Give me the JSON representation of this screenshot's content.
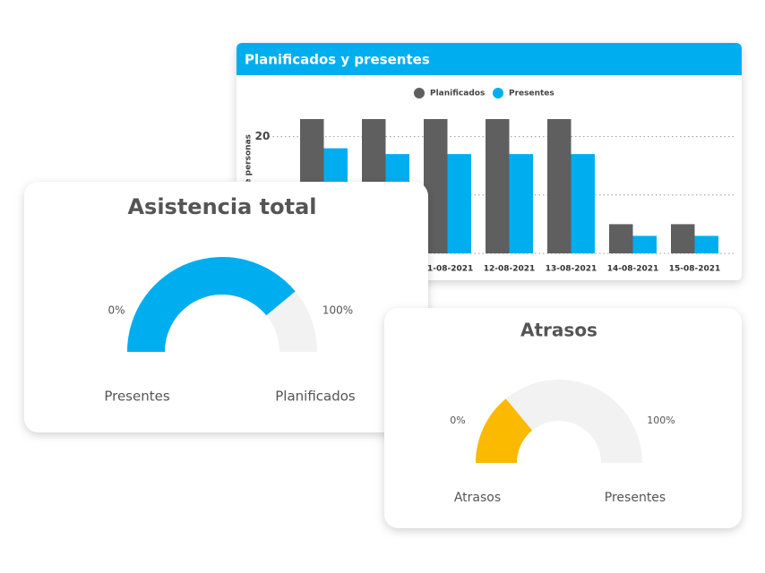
{
  "chart_data": [
    {
      "type": "bar",
      "title": "Planificados y presentes",
      "y_label": "Cantidad de personas",
      "categories": [
        null,
        null,
        "11-08-2021",
        "12-08-2021",
        "13-08-2021",
        "14-08-2021",
        "15-08-2021"
      ],
      "series": [
        {
          "name": "Planificados",
          "color": "#5f5f5f",
          "values": [
            23,
            23,
            23,
            23,
            23,
            5,
            5
          ]
        },
        {
          "name": "Presentes",
          "color": "#00aeef",
          "values": [
            18,
            17,
            17,
            17,
            17,
            3,
            3
          ]
        }
      ],
      "ylim": [
        0,
        23
      ],
      "yticks": [
        0,
        10,
        20
      ],
      "grid": true
    },
    {
      "type": "gauge",
      "title": "Asistencia total",
      "value": 78,
      "color": "#00aeef",
      "track_color": "#f2f2f2",
      "ylim": [
        0,
        100
      ],
      "yticks": [
        {
          "value": 0,
          "label": "0%"
        },
        {
          "value": 100,
          "label": "100%"
        }
      ],
      "labels": [
        "Presentes",
        "Planificados"
      ]
    },
    {
      "type": "gauge",
      "title": "Atrasos",
      "value": 28,
      "color": "#fbb900",
      "track_color": "#f2f2f2",
      "ylim": [
        0,
        100
      ],
      "yticks": [
        {
          "value": 0,
          "label": "0%"
        },
        {
          "value": 100,
          "label": "100%"
        }
      ],
      "labels": [
        "Atrasos",
        "Presentes"
      ]
    }
  ]
}
